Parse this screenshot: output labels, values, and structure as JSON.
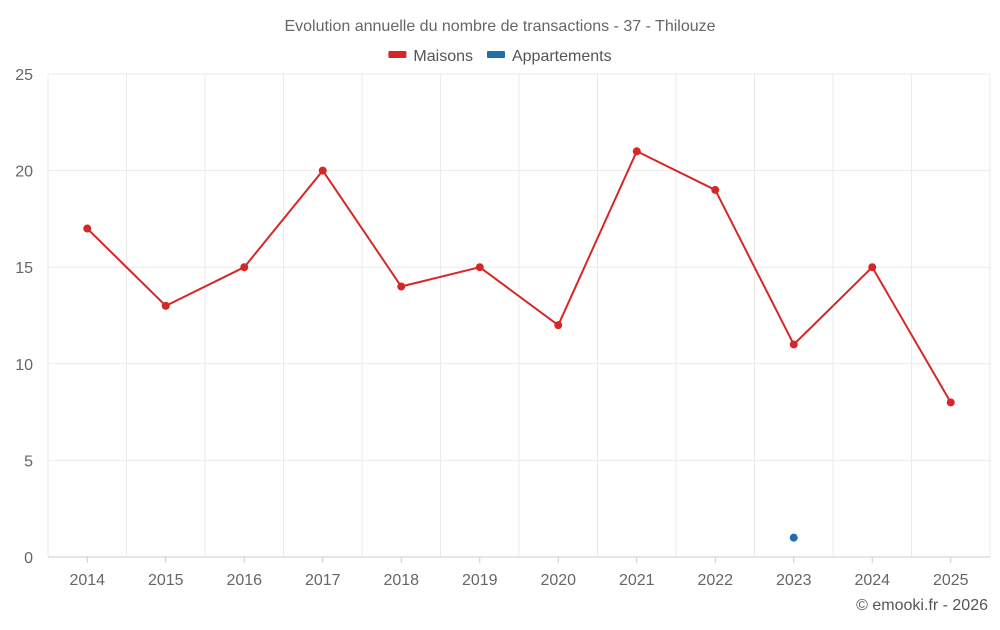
{
  "chart_data": {
    "type": "line",
    "title": "Evolution annuelle du nombre de transactions - 37 - Thilouze",
    "categories": [
      "2014",
      "2015",
      "2016",
      "2017",
      "2018",
      "2019",
      "2020",
      "2021",
      "2022",
      "2023",
      "2024",
      "2025"
    ],
    "ylim": [
      0,
      25
    ],
    "yticks": [
      0,
      5,
      10,
      15,
      20,
      25
    ],
    "grid": true,
    "legend_position": "top-center",
    "series": [
      {
        "name": "Maisons",
        "color": "#d62728",
        "values": [
          17,
          13,
          15,
          20,
          14,
          15,
          12,
          21,
          19,
          11,
          15,
          8
        ]
      },
      {
        "name": "Appartements",
        "color": "#1f6fa8",
        "values": [
          null,
          null,
          null,
          null,
          null,
          null,
          null,
          null,
          null,
          1,
          null,
          null
        ]
      }
    ],
    "credit": "© emooki.fr - 2026"
  }
}
